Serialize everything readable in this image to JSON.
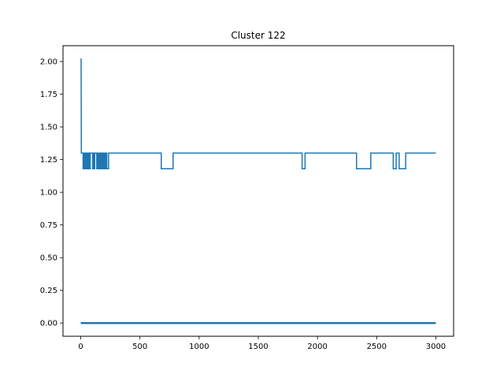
{
  "chart_data": {
    "type": "line",
    "title": "Cluster 122",
    "xlabel": "",
    "ylabel": "",
    "xlim": [
      -150,
      3150
    ],
    "ylim": [
      -0.101,
      2.121
    ],
    "xticks": [
      0,
      500,
      1000,
      1500,
      2000,
      2500,
      3000
    ],
    "xtick_labels": [
      "0",
      "500",
      "1000",
      "1500",
      "2000",
      "2500",
      "3000"
    ],
    "yticks": [
      0.0,
      0.25,
      0.5,
      0.75,
      1.0,
      1.25,
      1.5,
      1.75,
      2.0
    ],
    "ytick_labels": [
      "0.00",
      "0.25",
      "0.50",
      "0.75",
      "1.00",
      "1.25",
      "1.50",
      "1.75",
      "2.00"
    ],
    "grid": false,
    "color": "#1f77b4",
    "series": [
      {
        "points": [
          [
            0,
            2.02
          ],
          [
            3,
            2.02
          ],
          [
            5,
            1.3
          ],
          [
            20,
            1.3
          ],
          [
            20,
            1.18
          ],
          [
            25,
            1.18
          ],
          [
            25,
            1.3
          ],
          [
            35,
            1.3
          ],
          [
            35,
            1.18
          ],
          [
            40,
            1.18
          ],
          [
            40,
            1.3
          ],
          [
            50,
            1.3
          ],
          [
            50,
            1.18
          ],
          [
            55,
            1.18
          ],
          [
            55,
            1.3
          ],
          [
            62,
            1.3
          ],
          [
            62,
            1.18
          ],
          [
            68,
            1.18
          ],
          [
            68,
            1.3
          ],
          [
            75,
            1.3
          ],
          [
            75,
            1.18
          ],
          [
            80,
            1.18
          ],
          [
            80,
            1.3
          ],
          [
            100,
            1.3
          ],
          [
            100,
            1.18
          ],
          [
            105,
            1.18
          ],
          [
            105,
            1.3
          ],
          [
            112,
            1.3
          ],
          [
            112,
            1.18
          ],
          [
            118,
            1.18
          ],
          [
            118,
            1.3
          ],
          [
            135,
            1.3
          ],
          [
            135,
            1.18
          ],
          [
            140,
            1.18
          ],
          [
            140,
            1.3
          ],
          [
            148,
            1.3
          ],
          [
            148,
            1.18
          ],
          [
            155,
            1.18
          ],
          [
            155,
            1.3
          ],
          [
            165,
            1.3
          ],
          [
            165,
            1.18
          ],
          [
            170,
            1.18
          ],
          [
            170,
            1.3
          ],
          [
            180,
            1.3
          ],
          [
            180,
            1.18
          ],
          [
            185,
            1.18
          ],
          [
            185,
            1.3
          ],
          [
            195,
            1.3
          ],
          [
            195,
            1.18
          ],
          [
            200,
            1.18
          ],
          [
            200,
            1.3
          ],
          [
            208,
            1.3
          ],
          [
            208,
            1.18
          ],
          [
            213,
            1.18
          ],
          [
            213,
            1.3
          ],
          [
            220,
            1.3
          ],
          [
            220,
            1.18
          ],
          [
            235,
            1.18
          ],
          [
            235,
            1.3
          ],
          [
            680,
            1.3
          ],
          [
            680,
            1.18
          ],
          [
            780,
            1.18
          ],
          [
            780,
            1.3
          ],
          [
            1870,
            1.3
          ],
          [
            1870,
            1.18
          ],
          [
            1895,
            1.18
          ],
          [
            1895,
            1.3
          ],
          [
            2330,
            1.3
          ],
          [
            2330,
            1.18
          ],
          [
            2450,
            1.18
          ],
          [
            2450,
            1.3
          ],
          [
            2640,
            1.3
          ],
          [
            2640,
            1.18
          ],
          [
            2665,
            1.18
          ],
          [
            2665,
            1.3
          ],
          [
            2690,
            1.3
          ],
          [
            2690,
            1.18
          ],
          [
            2745,
            1.18
          ],
          [
            2745,
            1.3
          ],
          [
            3000,
            1.3
          ]
        ]
      },
      {
        "points": [
          [
            0,
            0.0
          ],
          [
            3000,
            0.0
          ]
        ]
      }
    ]
  }
}
